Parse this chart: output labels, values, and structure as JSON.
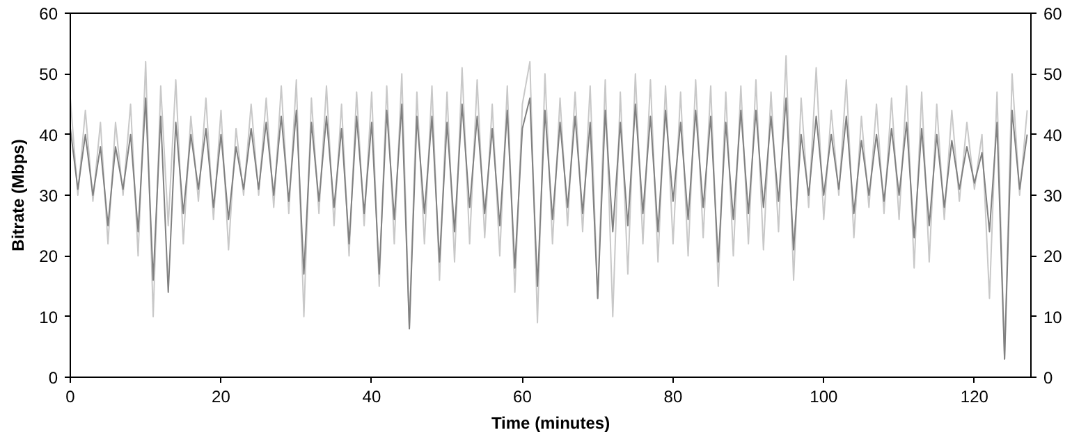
{
  "chart_data": {
    "type": "line",
    "xlabel": "Time (minutes)",
    "ylabel": "Bitrate (Mbps)",
    "xlim": [
      0,
      127.5
    ],
    "xticks": [
      0,
      20,
      40,
      60,
      80,
      100,
      120
    ],
    "ylim": [
      0,
      60
    ],
    "yticks": [
      0,
      10,
      20,
      30,
      40,
      50,
      60
    ],
    "y2lim": [
      0,
      60
    ],
    "y2ticks": [
      0,
      10,
      20,
      30,
      40,
      50,
      60
    ],
    "grid": false,
    "marker": "none",
    "line_style": "solid",
    "x": [
      0,
      1,
      2,
      3,
      4,
      5,
      6,
      7,
      8,
      9,
      10,
      11,
      12,
      13,
      14,
      15,
      16,
      17,
      18,
      19,
      20,
      21,
      22,
      23,
      24,
      25,
      26,
      27,
      28,
      29,
      30,
      31,
      32,
      33,
      34,
      35,
      36,
      37,
      38,
      39,
      40,
      41,
      42,
      43,
      44,
      45,
      46,
      47,
      48,
      49,
      50,
      51,
      52,
      53,
      54,
      55,
      56,
      57,
      58,
      59,
      60,
      61,
      62,
      63,
      64,
      65,
      66,
      67,
      68,
      69,
      70,
      71,
      72,
      73,
      74,
      75,
      76,
      77,
      78,
      79,
      80,
      81,
      82,
      83,
      84,
      85,
      86,
      87,
      88,
      89,
      90,
      91,
      92,
      93,
      94,
      95,
      96,
      97,
      98,
      99,
      100,
      101,
      102,
      103,
      104,
      105,
      106,
      107,
      108,
      109,
      110,
      111,
      112,
      113,
      114,
      115,
      116,
      117,
      118,
      119,
      120,
      121,
      122,
      123,
      124,
      125,
      126,
      127
    ],
    "series": [
      {
        "color": "#c8c8c8",
        "values": [
          46,
          30,
          44,
          29,
          42,
          22,
          42,
          30,
          45,
          20,
          52,
          10,
          48,
          25,
          49,
          22,
          43,
          29,
          46,
          26,
          44,
          21,
          41,
          30,
          45,
          30,
          46,
          28,
          48,
          27,
          49,
          10,
          46,
          27,
          48,
          25,
          45,
          20,
          47,
          25,
          47,
          15,
          48,
          22,
          50,
          8,
          47,
          22,
          48,
          16,
          47,
          19,
          51,
          22,
          49,
          23,
          45,
          20,
          48,
          14,
          45,
          52,
          9,
          50,
          22,
          46,
          25,
          47,
          24,
          48,
          13,
          49,
          10,
          47,
          17,
          50,
          22,
          49,
          19,
          48,
          22,
          47,
          20,
          49,
          23,
          48,
          15,
          47,
          20,
          48,
          22,
          49,
          21,
          47,
          24,
          53,
          16,
          46,
          28,
          51,
          26,
          44,
          30,
          49,
          23,
          43,
          28,
          45,
          27,
          46,
          26,
          48,
          18,
          47,
          19,
          45,
          26,
          44,
          29,
          42,
          31,
          40,
          13,
          47,
          3,
          50,
          30,
          44
        ]
      },
      {
        "color": "#808080",
        "values": [
          41,
          31,
          40,
          30,
          38,
          25,
          38,
          31,
          40,
          24,
          46,
          16,
          43,
          14,
          42,
          27,
          40,
          31,
          41,
          28,
          40,
          26,
          38,
          31,
          41,
          31,
          42,
          30,
          43,
          29,
          44,
          17,
          42,
          29,
          43,
          28,
          41,
          22,
          43,
          27,
          42,
          17,
          44,
          26,
          45,
          8,
          43,
          27,
          43,
          19,
          42,
          24,
          45,
          28,
          43,
          27,
          41,
          25,
          44,
          18,
          41,
          46,
          15,
          44,
          26,
          42,
          28,
          43,
          27,
          42,
          13,
          44,
          24,
          42,
          25,
          45,
          27,
          43,
          24,
          44,
          29,
          42,
          26,
          44,
          28,
          43,
          19,
          42,
          26,
          44,
          27,
          44,
          28,
          43,
          29,
          46,
          21,
          40,
          30,
          43,
          30,
          40,
          31,
          43,
          27,
          39,
          30,
          40,
          29,
          41,
          30,
          42,
          23,
          41,
          25,
          40,
          28,
          39,
          31,
          38,
          32,
          37,
          24,
          42,
          3,
          44,
          31,
          40
        ]
      }
    ]
  }
}
